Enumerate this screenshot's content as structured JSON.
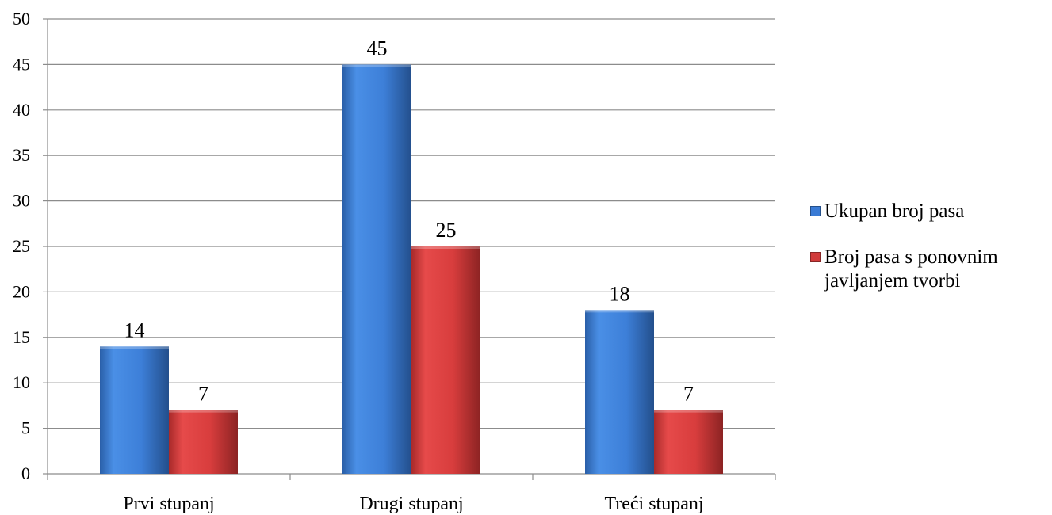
{
  "chart_data": {
    "type": "bar",
    "categories": [
      "Prvi stupanj",
      "Drugi stupanj",
      "Treći stupanj"
    ],
    "series": [
      {
        "name": "Ukupan broj pasa",
        "values": [
          14,
          45,
          18
        ],
        "color": "#3a7bd5"
      },
      {
        "name": "Broj pasa s ponovnim javljanjem tvorbi",
        "values": [
          7,
          25,
          7
        ],
        "color": "#d13b3b"
      }
    ],
    "yticks": [
      "0",
      "5",
      "10",
      "15",
      "20",
      "25",
      "30",
      "35",
      "40",
      "45",
      "50"
    ],
    "ylim": [
      0,
      50
    ],
    "ystep": 5,
    "grid": true,
    "legend_position": "right",
    "data_labels": true
  }
}
